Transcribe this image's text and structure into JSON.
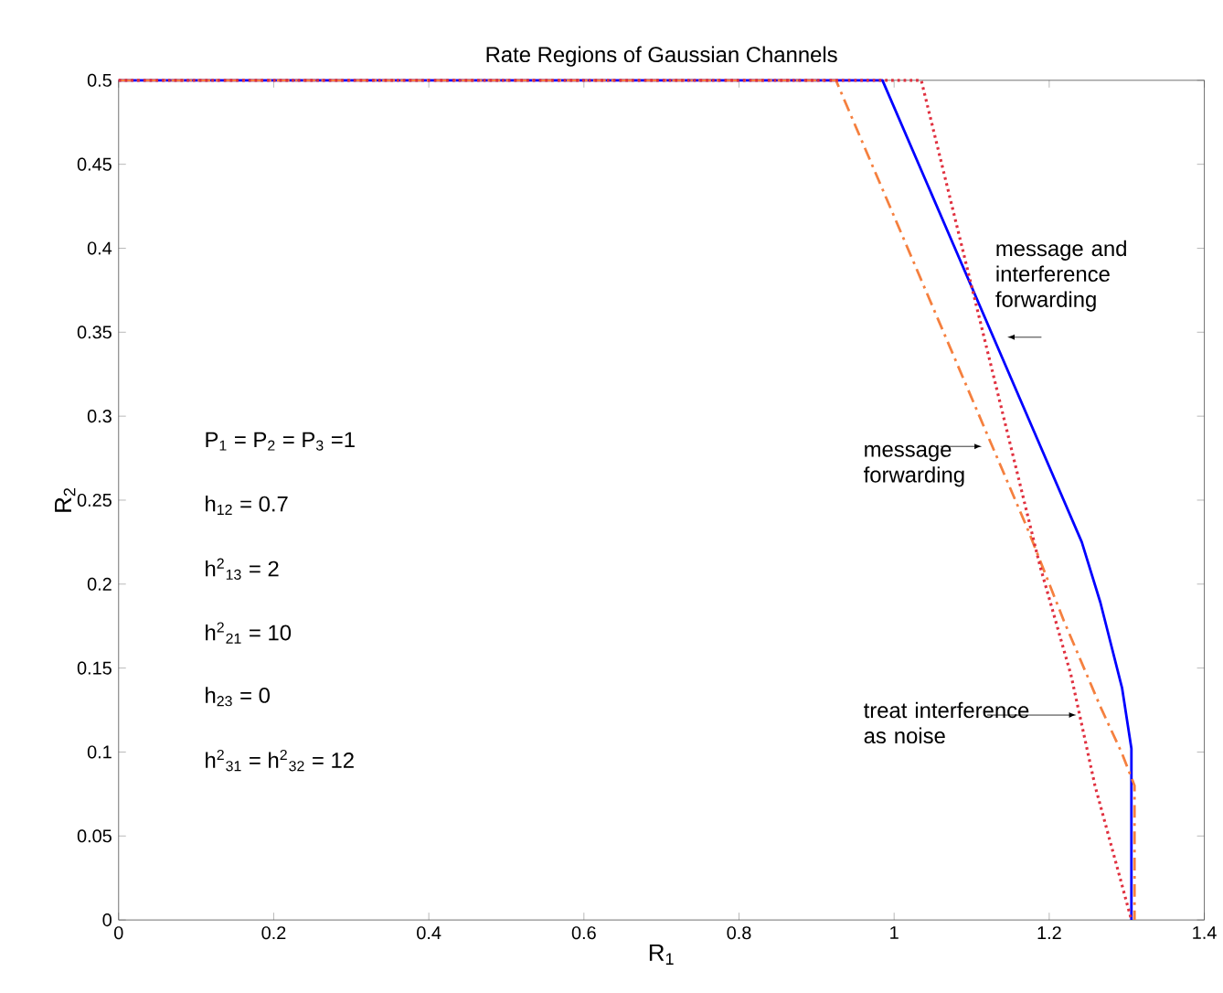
{
  "chart_data": {
    "type": "line",
    "title": "Rate Regions of Gaussian Channels",
    "xlabel": "R$_{1}$",
    "ylabel": "R$_{2}$",
    "xlim": [
      0,
      1.4
    ],
    "xticks": [
      0,
      0.2,
      0.4,
      0.6,
      0.8,
      1,
      1.2,
      1.4
    ],
    "ylim": [
      0,
      0.5
    ],
    "yticks": [
      0,
      0.05,
      0.1,
      0.15,
      0.2,
      0.25,
      0.3,
      0.35,
      0.4,
      0.45,
      0.5
    ],
    "grid": false,
    "marker": "none",
    "series": [
      {
        "color": "#0000ff",
        "line_style": "solid",
        "x": [
          0,
          0.985,
          1.242,
          1.266,
          1.294,
          1.306,
          1.306
        ],
        "values": [
          0.5,
          0.5,
          0.225,
          0.189,
          0.138,
          0.102,
          0
        ]
      },
      {
        "color": "#f5803f",
        "line_style": "dashdot",
        "x": [
          0,
          0.925,
          1.172,
          1.219,
          1.266,
          1.294,
          1.31,
          1.31
        ],
        "values": [
          0.5,
          0.5,
          0.233,
          0.178,
          0.127,
          0.099,
          0.08,
          0
        ]
      },
      {
        "color": "#e0303f",
        "line_style": "dotted",
        "x": [
          0,
          1.035,
          1.188,
          1.228,
          1.259,
          1.289,
          1.306
        ],
        "values": [
          0.5,
          0.5,
          0.211,
          0.146,
          0.08,
          0.029,
          0
        ]
      }
    ],
    "annotations": [
      {
        "text": "message and interference forwarding",
        "x": 1.146,
        "y": 0.347
      },
      {
        "text": "message forwarding",
        "x": 1.113,
        "y": 0.282
      },
      {
        "text": "treat interference as noise",
        "x": 1.235,
        "y": 0.122
      },
      "P$_{1}$ = P$_{2}$ = P$_{3}$ =1",
      "h$_{12}$ = 0.7",
      "h$^{2}$$_{13}$ = 2",
      "h$^{2}$$_{21}$ = 10",
      "h$_{23}$ = 0",
      "h$^{2}$$_{31}$ = h$^{2}$$_{32}$ = 12"
    ]
  }
}
